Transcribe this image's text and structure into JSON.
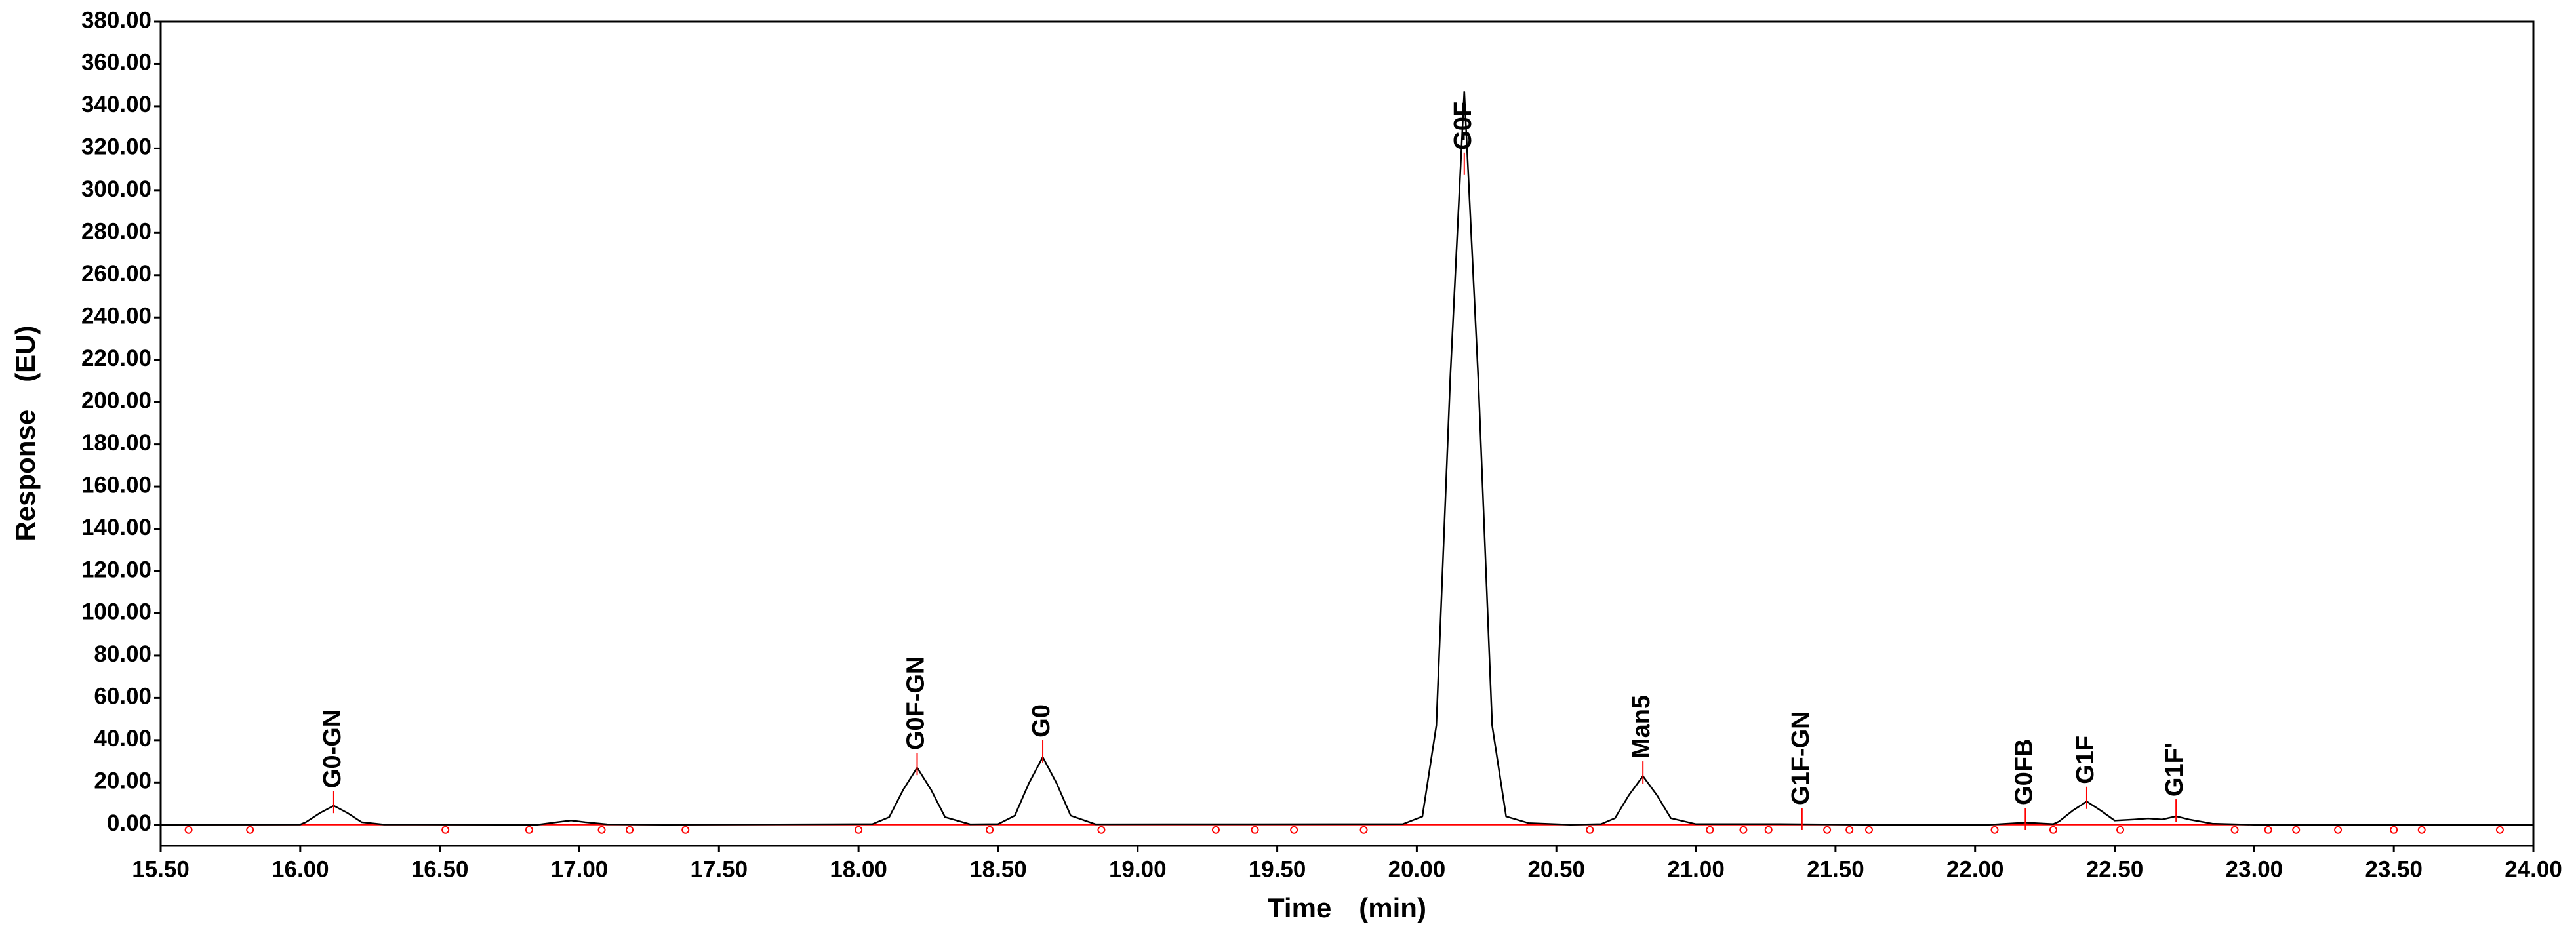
{
  "chart_data": {
    "type": "line",
    "xlabel": "Time　(min)",
    "ylabel": "Response　(EU)",
    "color": "#000000",
    "baseline_color": "#ff0000",
    "label_color": "#ff0000",
    "xlim": [
      15.5,
      24.0
    ],
    "ylim": [
      -10,
      380
    ],
    "xticks": [
      {
        "value": 15.5,
        "label": "15.50"
      },
      {
        "value": 16,
        "label": "16.00"
      },
      {
        "value": 16.5,
        "label": "16.50"
      },
      {
        "value": 17,
        "label": "17.00"
      },
      {
        "value": 17.5,
        "label": "17.50"
      },
      {
        "value": 18,
        "label": "18.00"
      },
      {
        "value": 18.5,
        "label": "18.50"
      },
      {
        "value": 19,
        "label": "19.00"
      },
      {
        "value": 19.5,
        "label": "19.50"
      },
      {
        "value": 20,
        "label": "20.00"
      },
      {
        "value": 20.5,
        "label": "20.50"
      },
      {
        "value": 21,
        "label": "21.00"
      },
      {
        "value": 21.5,
        "label": "21.50"
      },
      {
        "value": 22,
        "label": "22.00"
      },
      {
        "value": 22.5,
        "label": "22.50"
      },
      {
        "value": 23,
        "label": "23.00"
      },
      {
        "value": 23.5,
        "label": "23.50"
      },
      {
        "value": 24,
        "label": "24.00"
      }
    ],
    "yticks": [
      {
        "value": 0,
        "label": "0.00"
      },
      {
        "value": 20,
        "label": "20.00"
      },
      {
        "value": 40,
        "label": "40.00"
      },
      {
        "value": 60,
        "label": "60.00"
      },
      {
        "value": 80,
        "label": "80.00"
      },
      {
        "value": 100,
        "label": "100.00"
      },
      {
        "value": 120,
        "label": "120.00"
      },
      {
        "value": 140,
        "label": "140.00"
      },
      {
        "value": 160,
        "label": "160.00"
      },
      {
        "value": 180,
        "label": "180.00"
      },
      {
        "value": 200,
        "label": "200.00"
      },
      {
        "value": 220,
        "label": "220.00"
      },
      {
        "value": 240,
        "label": "240.00"
      },
      {
        "value": 260,
        "label": "260.00"
      },
      {
        "value": 280,
        "label": "280.00"
      },
      {
        "value": 300,
        "label": "300.00"
      },
      {
        "value": 320,
        "label": "320.00"
      },
      {
        "value": 340,
        "label": "340.00"
      },
      {
        "value": 360,
        "label": "360.00"
      },
      {
        "value": 380,
        "label": "380.00"
      }
    ],
    "x": [
      15.5,
      16.0,
      16.02,
      16.07,
      16.12,
      16.17,
      16.22,
      16.3,
      16.85,
      16.92,
      16.97,
      17.02,
      17.1,
      17.3,
      18.05,
      18.11,
      18.16,
      18.21,
      18.26,
      18.31,
      18.4,
      18.5,
      18.56,
      18.61,
      18.66,
      18.71,
      18.76,
      18.85,
      19.95,
      20.02,
      20.07,
      20.12,
      20.17,
      20.22,
      20.27,
      20.32,
      20.4,
      20.55,
      20.66,
      20.71,
      20.76,
      20.81,
      20.86,
      20.91,
      21.0,
      21.3,
      21.6,
      22.05,
      22.18,
      22.28,
      22.3,
      22.35,
      22.4,
      22.45,
      22.5,
      22.57,
      22.62,
      22.67,
      22.72,
      22.77,
      22.85,
      23.0,
      24.0
    ],
    "values": [
      0,
      0.1,
      1.2,
      5.5,
      9,
      5.5,
      1.2,
      0.1,
      0,
      1.2,
      2,
      1.2,
      0.2,
      0,
      0.3,
      3.6,
      16.5,
      27,
      16.5,
      3.6,
      0.2,
      0.3,
      4.3,
      19.5,
      32,
      19.5,
      4.3,
      0.2,
      0.3,
      3.9,
      46.9,
      211.7,
      347,
      211.7,
      46.9,
      3.9,
      0.8,
      0,
      0.3,
      3.1,
      14,
      23,
      14,
      3.1,
      0.3,
      0.3,
      0,
      0,
      1,
      0.3,
      1.5,
      6.7,
      11,
      6.7,
      2,
      2.5,
      3,
      2.5,
      4,
      2.4,
      0.5,
      0,
      0
    ],
    "peak_boundaries": [
      15.6,
      15.82,
      16.52,
      16.82,
      17.08,
      17.18,
      17.38,
      18.0,
      18.47,
      18.87,
      19.28,
      19.42,
      19.56,
      19.81,
      20.62,
      21.05,
      21.17,
      21.26,
      21.47,
      21.55,
      21.62,
      22.07,
      22.28,
      22.52,
      22.93,
      23.05,
      23.15,
      23.3,
      23.5,
      23.6,
      23.88
    ],
    "annotations": [
      {
        "text": "G0-GN",
        "x": 16.12,
        "y": 16
      },
      {
        "text": "G0F-GN",
        "x": 18.21,
        "y": 34
      },
      {
        "text": "G0",
        "x": 18.66,
        "y": 40
      },
      {
        "text": "G0F",
        "x": 20.17,
        "y": 318
      },
      {
        "text": "Man5",
        "x": 20.81,
        "y": 30
      },
      {
        "text": "G1F-GN",
        "x": 21.38,
        "y": 8
      },
      {
        "text": "G0FB",
        "x": 22.18,
        "y": 8
      },
      {
        "text": "G1F",
        "x": 22.4,
        "y": 18
      },
      {
        "text": "G1F'",
        "x": 22.72,
        "y": 12
      }
    ]
  }
}
